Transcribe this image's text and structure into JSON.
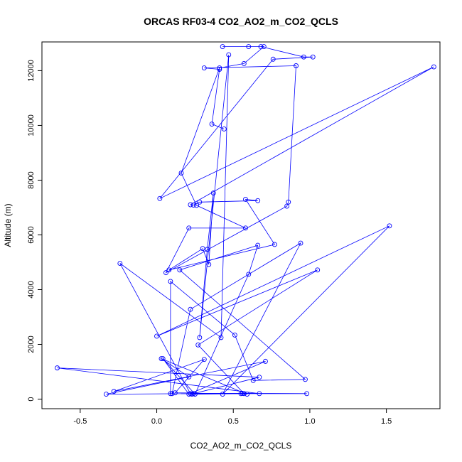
{
  "chart_data": {
    "type": "line",
    "title": "ORCAS RF03-4 CO2_AO2_m_CO2_QCLS",
    "xlabel": "CO2_AO2_m_CO2_QCLS",
    "ylabel": "Altitude (m)",
    "xlim": [
      -0.75,
      1.85
    ],
    "ylim": [
      -350,
      13050
    ],
    "xticks": [
      -0.5,
      0.0,
      0.5,
      1.0,
      1.5
    ],
    "xtick_labels": [
      "-0.5",
      "0.0",
      "0.5",
      "1.0",
      "1.5"
    ],
    "yticks": [
      0,
      2000,
      4000,
      6000,
      8000,
      10000,
      12000
    ],
    "ytick_labels": [
      "0",
      "2000",
      "4000",
      "6000",
      "8000",
      "10000",
      "12000"
    ],
    "series": [
      {
        "color": "#0000ff",
        "marker": "open-circle",
        "x": [
          0.44,
          0.36,
          0.41,
          0.31,
          0.91,
          0.86,
          0.85,
          0.06,
          0.21,
          0.58,
          0.26,
          0.16,
          0.41,
          0.57,
          0.7,
          0.43,
          0.6,
          0.68,
          0.96,
          1.02,
          0.76,
          0.02,
          1.81,
          0.22,
          0.24,
          0.28,
          0.66,
          0.58,
          0.77,
          0.08,
          0.3,
          0.34,
          0.37,
          0.33,
          0.28,
          0.47,
          0.42,
          -0.24,
          0.22,
          0.98,
          0.12,
          0.31,
          -0.28,
          0.71,
          0.21,
          0.04,
          0.25,
          0.6,
          0.66,
          0.15,
          0.97,
          0.63,
          0.51,
          0.09,
          0.09,
          0.1,
          0.22,
          0.94,
          0.43,
          1.52,
          0.0,
          1.05,
          0.27,
          0.57,
          0.67,
          -0.65,
          0.67,
          0.24,
          -0.33,
          0.21,
          0.03,
          0.59,
          0.55,
          0.23,
          0.56
        ],
        "y": [
          9870,
          10050,
          12050,
          12100,
          12180,
          7200,
          7050,
          4620,
          6250,
          6250,
          7080,
          8260,
          12100,
          12260,
          12880,
          12880,
          12880,
          12880,
          12500,
          12500,
          12420,
          7330,
          12140,
          7100,
          7090,
          7200,
          7250,
          7300,
          5650,
          4720,
          5500,
          4920,
          7530,
          5470,
          2250,
          12580,
          2250,
          4960,
          200,
          200,
          230,
          1450,
          280,
          1380,
          180,
          1480,
          180,
          4560,
          5620,
          4720,
          720,
          680,
          2340,
          4300,
          200,
          200,
          3280,
          5700,
          180,
          6330,
          2300,
          4720,
          1980,
          200,
          200,
          1140,
          800,
          200,
          180,
          810,
          1480,
          180,
          200,
          180,
          210
        ]
      }
    ]
  }
}
